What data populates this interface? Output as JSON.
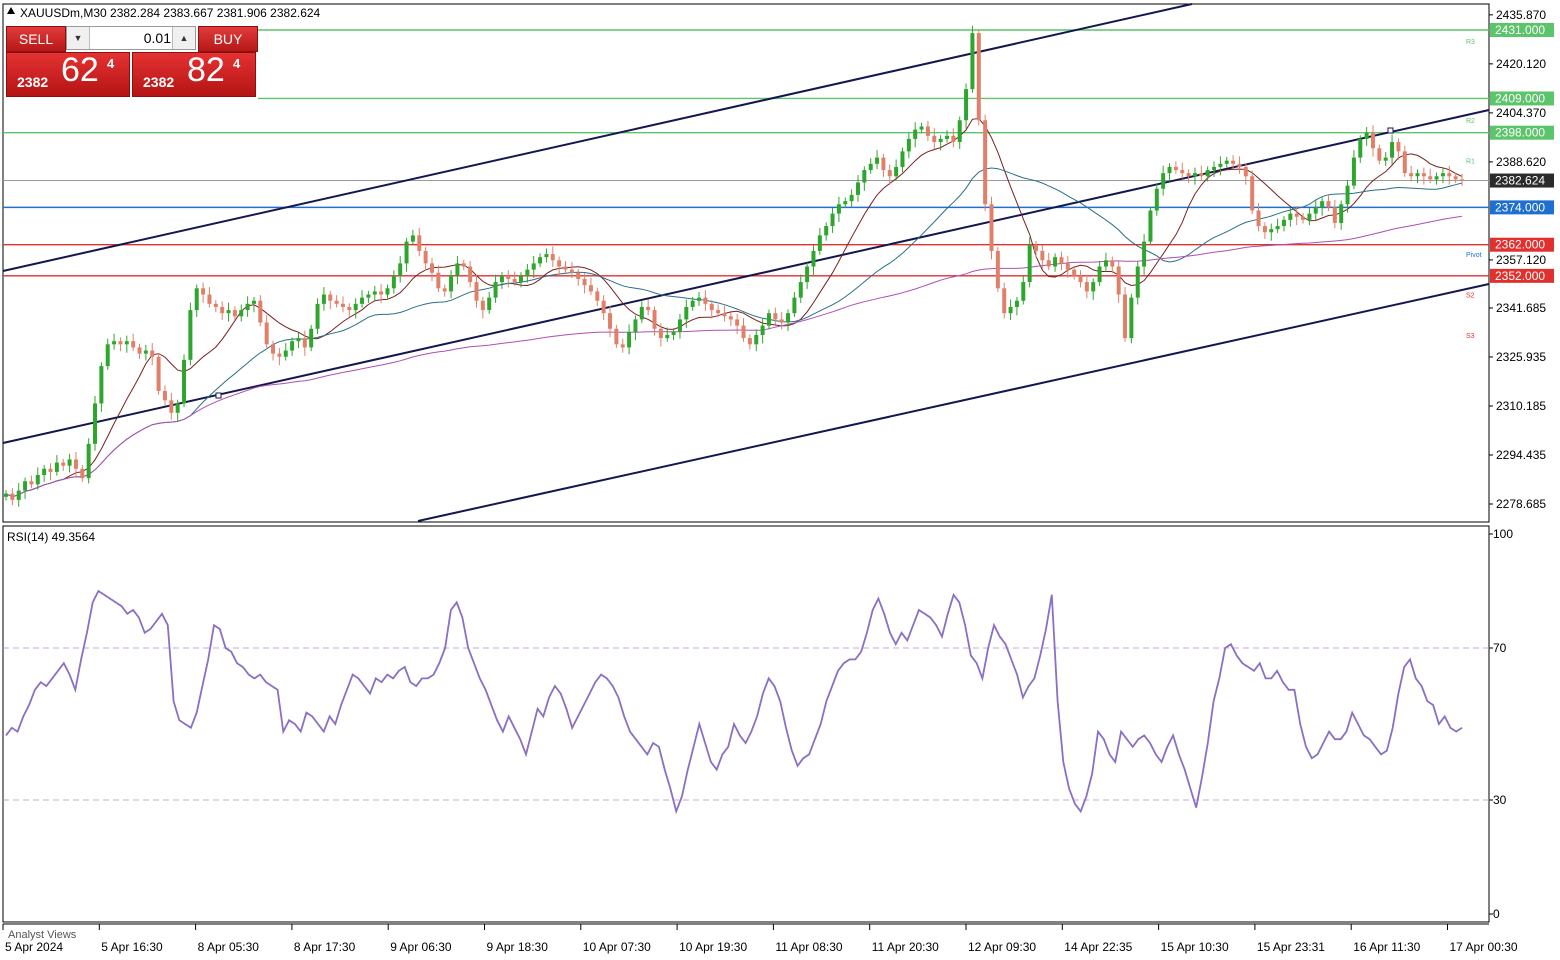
{
  "header": {
    "symbol_text": "XAUUSDm,M30  2382.284 2383.667 2381.906 2382.624",
    "arrow_icon": "triangle-up-icon"
  },
  "trade_panel": {
    "sell_label": "SELL",
    "buy_label": "BUY",
    "volume_value": "0.01",
    "sell_big": "2382",
    "sell_main": "62",
    "sell_sup": "4",
    "buy_big": "2382",
    "buy_main": "82",
    "buy_sup": "4",
    "colors": {
      "button": "#c91f1f"
    }
  },
  "price_axis_ticks": [
    "2435.870",
    "2420.120",
    "2404.370",
    "2388.620",
    "2357.120",
    "2341.685",
    "2325.935",
    "2310.185",
    "2294.435",
    "2278.685"
  ],
  "levels": [
    {
      "price": 2431.0,
      "label": "2431.000",
      "color": "#5cc46a"
    },
    {
      "price": 2409.0,
      "label": "2409.000",
      "color": "#5cc46a"
    },
    {
      "price": 2398.0,
      "label": "2398.000",
      "color": "#5cc46a"
    },
    {
      "price": 2374.0,
      "label": "2374.000",
      "color": "#1f6fd1"
    },
    {
      "price": 2362.0,
      "label": "2362.000",
      "color": "#e0312f"
    },
    {
      "price": 2352.0,
      "label": "2352.000",
      "color": "#e0312f"
    }
  ],
  "current_price": {
    "price": 2382.624,
    "label": "2382.624"
  },
  "pivot_labels": [
    {
      "text": "R3",
      "price": 2427.5,
      "color": "#5cc46a"
    },
    {
      "text": "R2",
      "price": 2402.0,
      "color": "#5cc46a"
    },
    {
      "text": "R1",
      "price": 2389.0,
      "color": "#5cc46a"
    },
    {
      "text": "Pivot",
      "price": 2359.0,
      "color": "#1f6fd1"
    },
    {
      "text": "S2",
      "price": 2346.0,
      "color": "#e0312f"
    },
    {
      "text": "S3",
      "price": 2333.0,
      "color": "#e0312f"
    }
  ],
  "rsi": {
    "label": "RSI(14) 49.3564",
    "ticks": [
      "100",
      "70",
      "30",
      "0"
    ],
    "line_color": "#8a6fc4",
    "levels": [
      70,
      30
    ],
    "values": [
      47,
      49,
      48,
      52,
      55,
      59,
      61,
      60,
      62,
      64,
      66,
      63,
      59,
      67,
      74,
      82,
      85,
      84,
      83,
      82,
      81,
      79,
      80,
      78,
      74,
      75,
      77,
      79,
      76,
      56,
      51,
      50,
      49,
      53,
      60,
      67,
      76,
      75,
      70,
      69,
      66,
      65,
      63,
      62,
      63,
      61,
      60,
      59,
      48,
      51,
      50,
      48,
      53,
      52,
      50,
      48,
      52,
      50,
      55,
      59,
      63,
      62,
      60,
      58,
      62,
      61,
      63,
      62,
      64,
      65,
      61,
      60,
      62,
      62,
      63,
      66,
      70,
      80,
      82,
      78,
      70,
      66,
      62,
      59,
      55,
      51,
      48,
      52,
      49,
      46,
      42,
      48,
      54,
      52,
      57,
      60,
      58,
      54,
      49,
      52,
      55,
      58,
      61,
      63,
      62,
      60,
      57,
      52,
      48,
      46,
      44,
      42,
      45,
      44,
      38,
      33,
      27,
      31,
      38,
      44,
      50,
      45,
      40,
      38,
      42,
      44,
      50,
      47,
      45,
      48,
      52,
      58,
      62,
      60,
      56,
      49,
      43,
      39,
      41,
      42,
      46,
      50,
      56,
      60,
      64,
      66,
      67,
      67,
      69,
      74,
      80,
      83,
      79,
      74,
      71,
      74,
      72,
      76,
      80,
      79,
      78,
      76,
      73,
      79,
      84,
      82,
      76,
      68,
      66,
      62,
      70,
      76,
      73,
      71,
      67,
      63,
      57,
      60,
      62,
      68,
      75,
      84,
      56,
      40,
      33,
      29,
      27,
      31,
      37,
      48,
      46,
      42,
      40,
      48,
      46,
      44,
      46,
      47,
      45,
      42,
      40,
      44,
      47,
      42,
      38,
      33,
      28,
      36,
      45,
      56,
      62,
      70,
      71,
      68,
      66,
      65,
      64,
      66,
      62,
      62,
      64,
      61,
      59,
      59,
      50,
      44,
      41,
      42,
      45,
      48,
      46,
      46,
      48,
      53,
      50,
      47,
      46,
      44,
      42,
      43,
      49,
      58,
      65,
      67,
      62,
      60,
      56,
      55,
      50,
      52,
      49,
      48,
      49
    ],
    "color": "#8a6fc4"
  },
  "analyst_text": "Analyst Views",
  "time_axis": [
    "5 Apr 2024",
    "5 Apr 16:30",
    "8 Apr 05:30",
    "8 Apr 17:30",
    "9 Apr 06:30",
    "9 Apr 18:30",
    "10 Apr 07:30",
    "10 Apr 19:30",
    "11 Apr 08:30",
    "11 Apr 20:30",
    "12 Apr 09:30",
    "14 Apr 22:35",
    "15 Apr 10:30",
    "15 Apr 23:31",
    "16 Apr 11:30",
    "17 Apr 00:30"
  ],
  "chart_data": {
    "type": "candlestick",
    "title": "XAUUSDm,M30",
    "close_series": [
      2282,
      2280,
      2283,
      2286,
      2285,
      2288,
      2290,
      2289,
      2292,
      2291,
      2293,
      2290,
      2287,
      2298,
      2311,
      2323,
      2330,
      2331,
      2330,
      2331,
      2329,
      2327,
      2328,
      2326,
      2315,
      2312,
      2308,
      2311,
      2325,
      2341,
      2348,
      2346,
      2343,
      2342,
      2340,
      2341,
      2339,
      2341,
      2343,
      2344,
      2337,
      2330,
      2327,
      2326,
      2328,
      2331,
      2332,
      2329,
      2335,
      2343,
      2346,
      2344,
      2343,
      2342,
      2341,
      2343,
      2345,
      2346,
      2347,
      2346,
      2348,
      2352,
      2356,
      2363,
      2365,
      2360,
      2356,
      2353,
      2348,
      2347,
      2352,
      2356,
      2355,
      2350,
      2344,
      2341,
      2345,
      2350,
      2352,
      2351,
      2350,
      2352,
      2354,
      2356,
      2358,
      2359,
      2357,
      2355,
      2354,
      2353,
      2351,
      2349,
      2347,
      2344,
      2340,
      2335,
      2330,
      2329,
      2334,
      2338,
      2342,
      2341,
      2335,
      2332,
      2333,
      2334,
      2338,
      2342,
      2344,
      2345,
      2343,
      2341,
      2340,
      2339,
      2338,
      2336,
      2332,
      2330,
      2333,
      2336,
      2340,
      2338,
      2337,
      2340,
      2345,
      2350,
      2355,
      2360,
      2365,
      2368,
      2372,
      2375,
      2376,
      2378,
      2382,
      2386,
      2388,
      2390,
      2386,
      2384,
      2387,
      2392,
      2396,
      2399,
      2400,
      2397,
      2395,
      2396,
      2397,
      2395,
      2402,
      2412,
      2430,
      2402,
      2375,
      2360,
      2348,
      2340,
      2342,
      2344,
      2350,
      2362,
      2360,
      2357,
      2355,
      2358,
      2356,
      2354,
      2352,
      2350,
      2347,
      2350,
      2355,
      2357,
      2355,
      2346,
      2332,
      2345,
      2355,
      2363,
      2373,
      2380,
      2385,
      2387,
      2386,
      2385,
      2384,
      2385,
      2384,
      2386,
      2387,
      2388,
      2389,
      2388,
      2387,
      2384,
      2373,
      2368,
      2366,
      2367,
      2368,
      2370,
      2372,
      2371,
      2370,
      2372,
      2374,
      2376,
      2374,
      2369,
      2375,
      2381,
      2390,
      2396,
      2398,
      2393,
      2389,
      2390,
      2395,
      2392,
      2385,
      2384,
      2385,
      2384,
      2383,
      2384,
      2385,
      2384,
      2383,
      2382.6
    ]
  }
}
